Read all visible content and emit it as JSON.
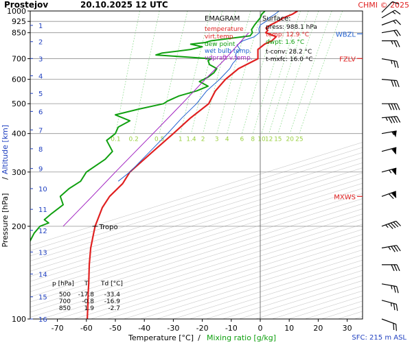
{
  "header": {
    "station": "Prostejov",
    "datetime": "20.10.2025 12 UTC",
    "copyright": "CHMI © 2025"
  },
  "legend": {
    "title": "EMAGRAM",
    "items": [
      {
        "label": "temperature",
        "color": "#e02020"
      },
      {
        "label": "virt.temp.",
        "color": "#e02020"
      },
      {
        "label": "dew point",
        "color": "#10a010"
      },
      {
        "label": "wet bulb temp.",
        "color": "#2060d0"
      },
      {
        "label": "udpraft v.temp.",
        "color": "#a020c0"
      }
    ]
  },
  "surface": {
    "title": "Surface:",
    "lines": [
      {
        "text": "press: 988.1 hPa",
        "color": "#000000"
      },
      {
        "text": "temp: 12.9 °C",
        "color": "#e02020"
      },
      {
        "text": "dwpt: 1.6 °C",
        "color": "#10a010"
      },
      {
        "text": "t-conv: 28.2 °C",
        "color": "#000000"
      },
      {
        "text": "t-mxfc: 16.0 °C",
        "color": "#000000"
      }
    ]
  },
  "levels_table": {
    "headers": [
      "p [hPa]",
      "T",
      "Td [°C]"
    ],
    "rows": [
      [
        "500",
        "-17.8",
        "-33.4"
      ],
      [
        "700",
        "-0.8",
        "-16.9"
      ],
      [
        "850",
        "1.9",
        "-2.7"
      ]
    ]
  },
  "chart_data": {
    "type": "line",
    "title": "EMAGRAM",
    "xlabel": "Temperature [°C]",
    "xlabel_extra": "Mixing ratio [g/kg]",
    "ylabel": "Pressure [hPa]",
    "ylabel_extra": "Altitude [km]",
    "xlim": [
      -80,
      35
    ],
    "ylim": [
      1000,
      100
    ],
    "y_scale": "log",
    "x_ticks": [
      -70,
      -60,
      -50,
      -40,
      -30,
      -20,
      -10,
      0,
      10,
      20,
      30
    ],
    "x_tick_labels": [
      "-70",
      "-60",
      "-50",
      "-40",
      "-30",
      "-20",
      "-10",
      "0",
      "10",
      "20",
      "30"
    ],
    "pressure_ticks": [
      100,
      200,
      300,
      400,
      500,
      600,
      700,
      850,
      925,
      1000
    ],
    "pressure_tick_labels": [
      "100",
      "200",
      "300",
      "400",
      "500",
      "600",
      "700",
      "850",
      "925",
      "1000"
    ],
    "altitude_ticks_hpa": [
      898,
      795,
      701,
      616,
      540,
      472,
      411,
      357,
      308,
      265,
      227,
      194,
      165,
      140,
      118,
      100
    ],
    "altitude_tick_labels": [
      "1",
      "2",
      "3",
      "4",
      "5",
      "6",
      "7",
      "8",
      "9",
      "10",
      "11",
      "12",
      "13",
      "14",
      "15",
      "16"
    ],
    "mixing_ratio_lines": [
      0.1,
      0.2,
      0.5,
      1,
      1.4,
      2,
      3,
      4,
      6,
      8,
      10,
      12,
      15,
      20,
      25
    ],
    "mixing_ratio_labels": [
      "0.1",
      "0.2",
      "0.5",
      "1",
      "1.4",
      "2",
      "3",
      "4",
      "6",
      "8",
      "10",
      "12",
      "15",
      "20",
      "25"
    ],
    "mixing_ratio_label_hpa": 400,
    "annotations": [
      {
        "text": "Tropo",
        "p": 200,
        "t": -57
      },
      {
        "text": "MXWS",
        "p": 250
      },
      {
        "text": "FZLV",
        "p": 701
      },
      {
        "text": "WBZL",
        "p": 843
      }
    ],
    "sfc_note": "SFC: 215 m ASL",
    "series": [
      {
        "name": "temperature",
        "color": "#e02020",
        "points": [
          [
            1000,
            12.9
          ],
          [
            975,
            11
          ],
          [
            950,
            8
          ],
          [
            925,
            6
          ],
          [
            900,
            3.5
          ],
          [
            880,
            2
          ],
          [
            865,
            2.6
          ],
          [
            850,
            1.9
          ],
          [
            825,
            5.5
          ],
          [
            800,
            4
          ],
          [
            780,
            1.5
          ],
          [
            750,
            -0.8
          ],
          [
            700,
            -0.8
          ],
          [
            650,
            -7.5
          ],
          [
            600,
            -12
          ],
          [
            550,
            -15.5
          ],
          [
            500,
            -17.8
          ],
          [
            450,
            -24
          ],
          [
            400,
            -30
          ],
          [
            350,
            -37
          ],
          [
            300,
            -45
          ],
          [
            275,
            -47.5
          ],
          [
            250,
            -52
          ],
          [
            230,
            -54.5
          ],
          [
            200,
            -57
          ],
          [
            190,
            -57.5
          ],
          [
            170,
            -58.5
          ],
          [
            150,
            -59
          ],
          [
            130,
            -59.2
          ],
          [
            120,
            -59.4
          ],
          [
            110,
            -59.5
          ],
          [
            100,
            -59.7
          ]
        ]
      },
      {
        "name": "dew point",
        "color": "#10a010",
        "points": [
          [
            1000,
            1.6
          ],
          [
            975,
            0.5
          ],
          [
            950,
            0
          ],
          [
            925,
            -1
          ],
          [
            900,
            -2
          ],
          [
            870,
            -3
          ],
          [
            850,
            -2.7
          ],
          [
            830,
            -3.5
          ],
          [
            800,
            -17
          ],
          [
            790,
            -19
          ],
          [
            780,
            -24
          ],
          [
            765,
            -20
          ],
          [
            750,
            -24
          ],
          [
            730,
            -34
          ],
          [
            720,
            -36
          ],
          [
            700,
            -16.9
          ],
          [
            690,
            -18
          ],
          [
            670,
            -17.5
          ],
          [
            650,
            -15
          ],
          [
            630,
            -16
          ],
          [
            610,
            -18
          ],
          [
            590,
            -21
          ],
          [
            570,
            -18
          ],
          [
            550,
            -22
          ],
          [
            530,
            -28
          ],
          [
            510,
            -32
          ],
          [
            500,
            -33.4
          ],
          [
            480,
            -42
          ],
          [
            460,
            -50
          ],
          [
            440,
            -45
          ],
          [
            420,
            -49
          ],
          [
            400,
            -50
          ],
          [
            380,
            -53
          ],
          [
            350,
            -51
          ],
          [
            330,
            -53.5
          ],
          [
            300,
            -60
          ],
          [
            280,
            -62
          ],
          [
            265,
            -66
          ],
          [
            250,
            -69
          ],
          [
            235,
            -68
          ],
          [
            220,
            -72
          ],
          [
            210,
            -74.5
          ],
          [
            205,
            -73
          ],
          [
            200,
            -76
          ],
          [
            190,
            -78
          ],
          [
            175,
            -80
          ]
        ]
      },
      {
        "name": "wet bulb temp.",
        "color": "#2060d0",
        "points": [
          [
            1000,
            6.5
          ],
          [
            975,
            5
          ],
          [
            950,
            3
          ],
          [
            925,
            2
          ],
          [
            900,
            0
          ],
          [
            875,
            -0.5
          ],
          [
            850,
            -0.3
          ],
          [
            825,
            -2
          ],
          [
            800,
            -6
          ],
          [
            775,
            -8
          ],
          [
            750,
            -7
          ],
          [
            725,
            -8.5
          ],
          [
            700,
            -8
          ],
          [
            675,
            -9.5
          ],
          [
            650,
            -10.5
          ],
          [
            600,
            -14
          ],
          [
            550,
            -18.5
          ],
          [
            500,
            -22
          ],
          [
            450,
            -27
          ],
          [
            400,
            -32
          ],
          [
            350,
            -38
          ],
          [
            300,
            -45
          ],
          [
            280,
            -49
          ]
        ]
      },
      {
        "name": "udpraft v.temp.",
        "color": "#a020c0",
        "points": [
          [
            850,
            -4
          ],
          [
            800,
            -6.5
          ],
          [
            700,
            -12
          ],
          [
            600,
            -19
          ],
          [
            500,
            -27
          ],
          [
            400,
            -37
          ],
          [
            300,
            -50
          ],
          [
            250,
            -58
          ],
          [
            200,
            -68
          ]
        ]
      }
    ]
  },
  "wind_barbs": [
    {
      "p": 990,
      "dir": 225,
      "kt": 10
    },
    {
      "p": 950,
      "dir": 240,
      "kt": 15
    },
    {
      "p": 900,
      "dir": 250,
      "kt": 15
    },
    {
      "p": 850,
      "dir": 260,
      "kt": 20
    },
    {
      "p": 800,
      "dir": 270,
      "kt": 25
    },
    {
      "p": 700,
      "dir": 280,
      "kt": 25
    },
    {
      "p": 600,
      "dir": 275,
      "kt": 30
    },
    {
      "p": 500,
      "dir": 270,
      "kt": 40
    },
    {
      "p": 450,
      "dir": 265,
      "kt": 45
    },
    {
      "p": 400,
      "dir": 260,
      "kt": 55
    },
    {
      "p": 350,
      "dir": 255,
      "kt": 60
    },
    {
      "p": 300,
      "dir": 255,
      "kt": 65
    },
    {
      "p": 250,
      "dir": 250,
      "kt": 70
    },
    {
      "p": 200,
      "dir": 250,
      "kt": 45
    },
    {
      "p": 170,
      "dir": 260,
      "kt": 35
    },
    {
      "p": 150,
      "dir": 270,
      "kt": 30
    },
    {
      "p": 130,
      "dir": 280,
      "kt": 25
    },
    {
      "p": 115,
      "dir": 285,
      "kt": 25
    },
    {
      "p": 100,
      "dir": 290,
      "kt": 20
    }
  ],
  "colors": {
    "temperature": "#e02020",
    "dewpoint": "#10a010",
    "wetbulb": "#2060d0",
    "parcel": "#a020c0",
    "isotherm": "#c8c8c8",
    "mixing": "#9be09b",
    "altitude": "#2040c0",
    "copyright": "#e02020"
  }
}
